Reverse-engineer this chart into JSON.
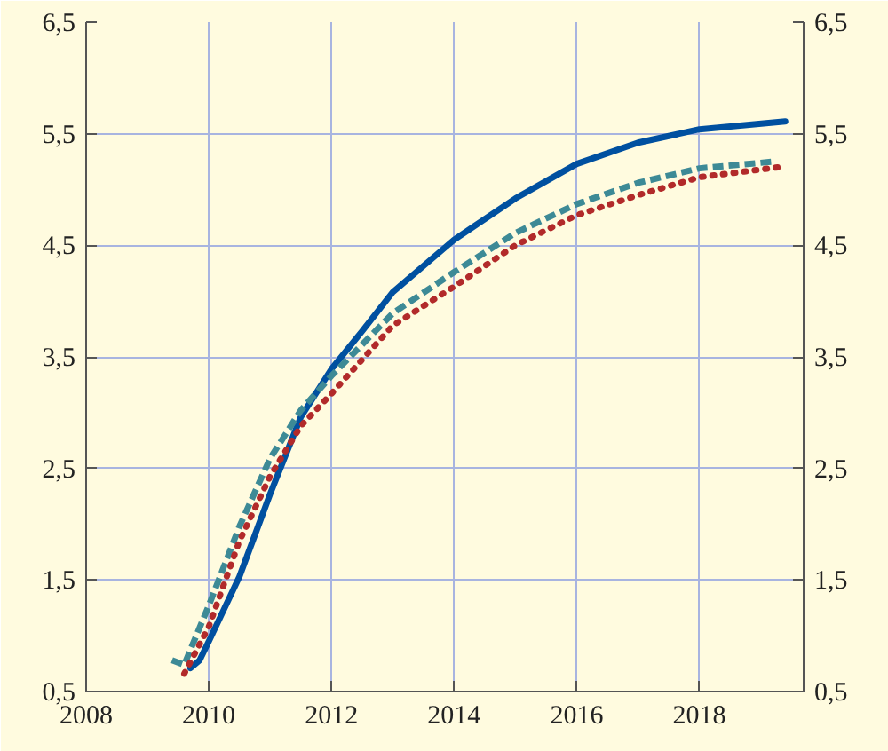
{
  "chart_data": {
    "type": "line",
    "xlim": [
      2008,
      2019.7
    ],
    "xticks": [
      2008,
      2010,
      2012,
      2014,
      2016,
      2018
    ],
    "ylim": [
      0.5,
      6.5
    ],
    "yticks": [
      {
        "value": 0.5,
        "label": "0,5"
      },
      {
        "value": 1.5,
        "label": "1,5"
      },
      {
        "value": 2.5,
        "label": "2,5"
      },
      {
        "value": 3.5,
        "label": "3,5"
      },
      {
        "value": 4.5,
        "label": "4,5"
      },
      {
        "value": 5.5,
        "label": "5,5"
      },
      {
        "value": 6.5,
        "label": "6,5"
      }
    ],
    "y2lim": [
      0.5,
      6.5
    ],
    "y2ticks": [
      {
        "value": 0.5,
        "label": "0,5"
      },
      {
        "value": 1.5,
        "label": "1,5"
      },
      {
        "value": 2.5,
        "label": "2,5"
      },
      {
        "value": 3.5,
        "label": "3,5"
      },
      {
        "value": 4.5,
        "label": "4,5"
      },
      {
        "value": 5.5,
        "label": "5,5"
      },
      {
        "value": 6.5,
        "label": "6,5"
      }
    ],
    "grid": true,
    "series": [
      {
        "color": "#0050a0",
        "line_style": "solid",
        "x": [
          2009.7,
          2009.85,
          2010,
          2010.5,
          2011,
          2011.5,
          2012,
          2012.5,
          2013,
          2014,
          2015,
          2016,
          2017,
          2018,
          2019.4
        ],
        "values": [
          0.71,
          0.78,
          0.95,
          1.53,
          2.27,
          2.96,
          3.39,
          3.73,
          4.08,
          4.55,
          4.92,
          5.23,
          5.42,
          5.54,
          5.61
        ]
      },
      {
        "color": "#3d8a96",
        "line_style": "dashed",
        "x": [
          2009.4,
          2009.6,
          2010,
          2010.5,
          2011,
          2011.5,
          2012,
          2013,
          2014,
          2015,
          2016,
          2017,
          2018,
          2019.2
        ],
        "values": [
          0.78,
          0.74,
          1.27,
          1.98,
          2.59,
          3.02,
          3.33,
          3.89,
          4.26,
          4.61,
          4.87,
          5.06,
          5.19,
          5.25
        ]
      },
      {
        "color": "#b22a2a",
        "line_style": "dotted",
        "x": [
          2009.6,
          2010,
          2010.5,
          2011,
          2011.5,
          2012,
          2013,
          2014,
          2015,
          2016,
          2017,
          2018,
          2019.3
        ],
        "values": [
          0.66,
          1.08,
          1.85,
          2.43,
          2.88,
          3.17,
          3.78,
          4.13,
          4.5,
          4.77,
          4.95,
          5.11,
          5.2
        ]
      }
    ]
  }
}
